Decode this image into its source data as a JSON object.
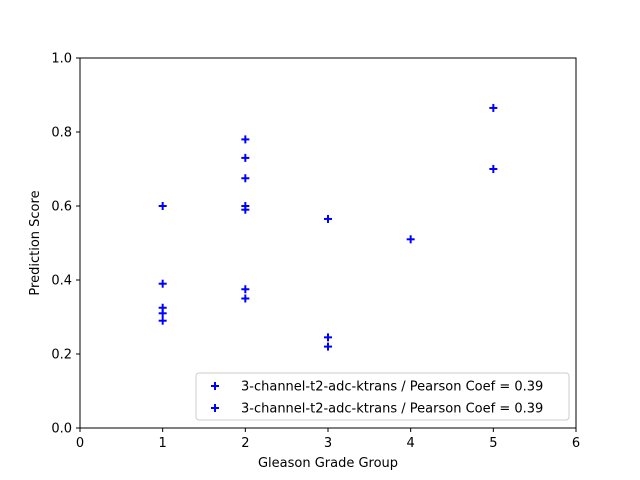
{
  "chart_data": {
    "type": "scatter",
    "xlabel": "Gleason Grade Group",
    "ylabel": "Prediction Score",
    "xlim": [
      0,
      6
    ],
    "ylim": [
      0.0,
      1.0
    ],
    "xticks": [
      "0",
      "1",
      "2",
      "3",
      "4",
      "5",
      "6"
    ],
    "yticks": [
      "0.0",
      "0.2",
      "0.4",
      "0.6",
      "0.8",
      "1.0"
    ],
    "grid": false,
    "legend_position": "lower-right",
    "marker": "plus",
    "color": "#0000ff",
    "series": [
      {
        "name": "3-channel-t2-adc-ktrans / Pearson Coef = 0.39",
        "points": [
          [
            1,
            0.6
          ],
          [
            1,
            0.39
          ],
          [
            1,
            0.325
          ],
          [
            1,
            0.31
          ],
          [
            1,
            0.29
          ],
          [
            2,
            0.78
          ],
          [
            2,
            0.73
          ],
          [
            2,
            0.675
          ],
          [
            2,
            0.6
          ],
          [
            2,
            0.59
          ],
          [
            2,
            0.375
          ],
          [
            2,
            0.35
          ],
          [
            3,
            0.565
          ],
          [
            3,
            0.245
          ],
          [
            3,
            0.22
          ],
          [
            4,
            0.51
          ],
          [
            5,
            0.865
          ],
          [
            5,
            0.7
          ]
        ]
      },
      {
        "name": "3-channel-t2-adc-ktrans / Pearson Coef = 0.39",
        "points": []
      }
    ]
  }
}
